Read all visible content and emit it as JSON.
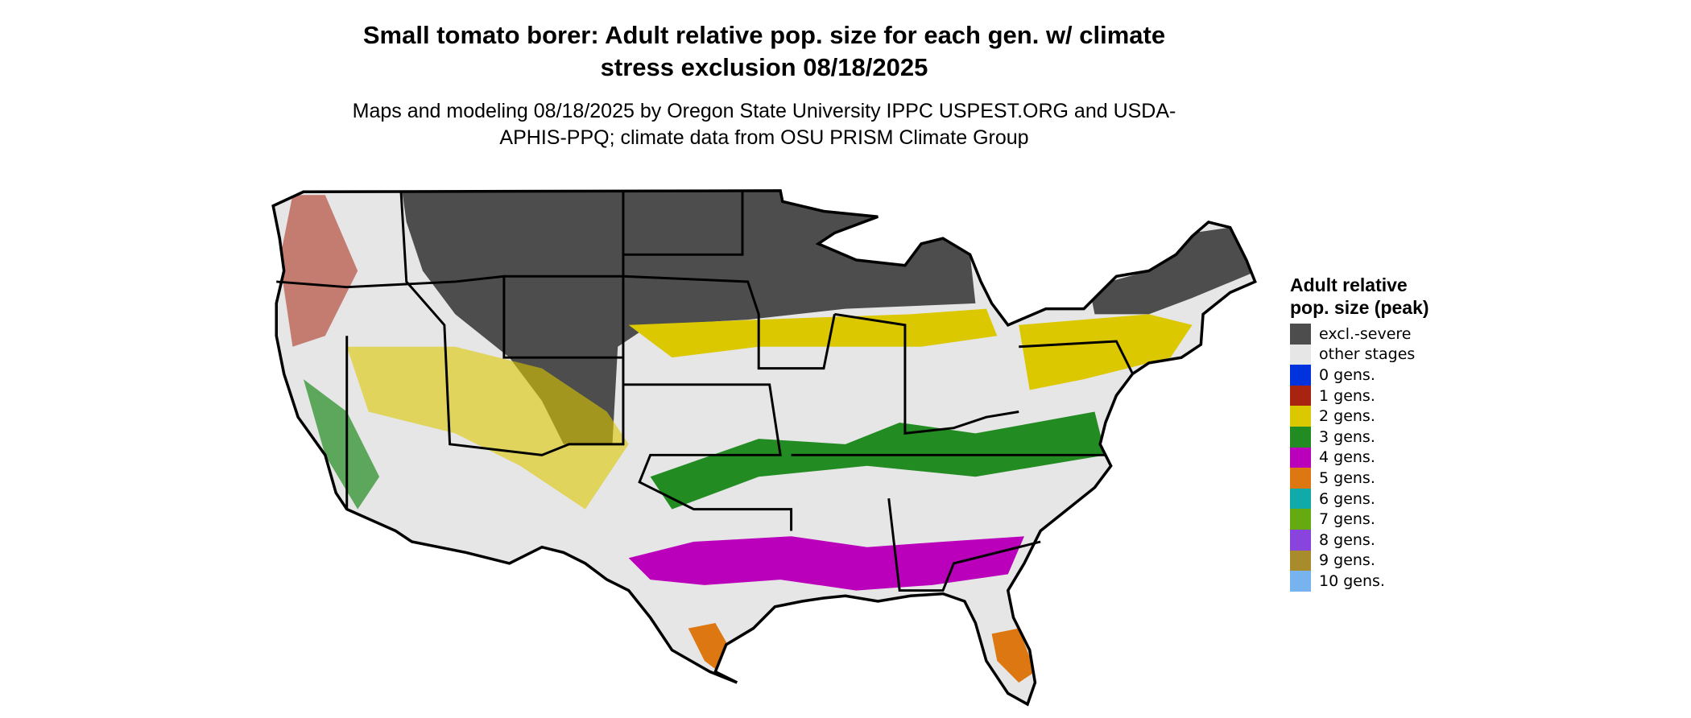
{
  "title": "Small tomato borer: Adult relative pop. size for each gen. w/ climate stress exclusion 08/18/2025",
  "subtitle": "Maps and modeling 08/18/2025 by Oregon State University IPPC USPEST.ORG and USDA-APHIS-PPQ; climate data from OSU PRISM Climate Group",
  "legend": {
    "title": "Adult relative pop. size (peak)",
    "items": [
      {
        "label": "excl.-severe",
        "color": "#4d4d4d"
      },
      {
        "label": "other stages",
        "color": "#e6e6e6"
      },
      {
        "label": "0 gens.",
        "color": "#0033dd"
      },
      {
        "label": "1 gens.",
        "color": "#a82411"
      },
      {
        "label": "2 gens.",
        "color": "#dcc800"
      },
      {
        "label": "3 gens.",
        "color": "#228b22"
      },
      {
        "label": "4 gens.",
        "color": "#bb00bb"
      },
      {
        "label": "5 gens.",
        "color": "#dd7711"
      },
      {
        "label": "6 gens.",
        "color": "#11aaaa"
      },
      {
        "label": "7 gens.",
        "color": "#66aa11"
      },
      {
        "label": "8 gens.",
        "color": "#8844dd"
      },
      {
        "label": "9 gens.",
        "color": "#a88c2c"
      },
      {
        "label": "10 gens.",
        "color": "#77b3ee"
      }
    ]
  }
}
